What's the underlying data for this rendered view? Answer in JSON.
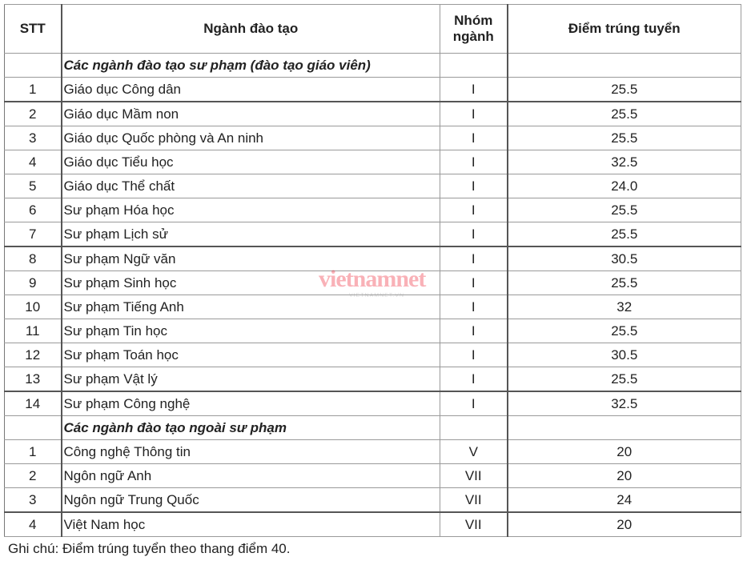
{
  "headers": {
    "stt": "STT",
    "nganh": "Ngành đào tạo",
    "nhom": "Nhóm ngành",
    "diem": "Điểm trúng tuyển"
  },
  "sections": [
    {
      "title": "Các ngành đào tạo sư phạm (đào tạo giáo viên)",
      "rows": [
        {
          "stt": "1",
          "nganh": "Giáo dục Công dân",
          "nhom": "I",
          "diem": "25.5"
        },
        {
          "stt": "2",
          "nganh": "Giáo dục Mầm non",
          "nhom": "I",
          "diem": "25.5"
        },
        {
          "stt": "3",
          "nganh": "Giáo dục Quốc phòng và An ninh",
          "nhom": "I",
          "diem": "25.5"
        },
        {
          "stt": "4",
          "nganh": "Giáo dục Tiểu học",
          "nhom": "I",
          "diem": "32.5"
        },
        {
          "stt": "5",
          "nganh": "Giáo dục Thể chất",
          "nhom": "I",
          "diem": "24.0"
        },
        {
          "stt": "6",
          "nganh": "Sư phạm Hóa học",
          "nhom": "I",
          "diem": "25.5"
        },
        {
          "stt": "7",
          "nganh": "Sư phạm Lịch sử",
          "nhom": "I",
          "diem": "25.5"
        },
        {
          "stt": "8",
          "nganh": "Sư phạm Ngữ văn",
          "nhom": "I",
          "diem": "30.5"
        },
        {
          "stt": "9",
          "nganh": "Sư phạm Sinh học",
          "nhom": "I",
          "diem": "25.5"
        },
        {
          "stt": "10",
          "nganh": "Sư phạm Tiếng Anh",
          "nhom": "I",
          "diem": "32"
        },
        {
          "stt": "11",
          "nganh": "Sư phạm Tin học",
          "nhom": "I",
          "diem": "25.5"
        },
        {
          "stt": "12",
          "nganh": "Sư phạm Toán học",
          "nhom": "I",
          "diem": "30.5"
        },
        {
          "stt": "13",
          "nganh": "Sư phạm Vật lý",
          "nhom": "I",
          "diem": "25.5"
        },
        {
          "stt": "14",
          "nganh": "Sư phạm Công nghệ",
          "nhom": "I",
          "diem": "32.5"
        }
      ]
    },
    {
      "title": "Các ngành đào tạo ngoài sư phạm",
      "rows": [
        {
          "stt": "1",
          "nganh": "Công nghệ Thông tin",
          "nhom": "V",
          "diem": "20"
        },
        {
          "stt": "2",
          "nganh": "Ngôn ngữ Anh",
          "nhom": "VII",
          "diem": "20"
        },
        {
          "stt": "3",
          "nganh": "Ngôn ngữ Trung Quốc",
          "nhom": "VII",
          "diem": "24"
        },
        {
          "stt": "4",
          "nganh": "Việt Nam học",
          "nhom": "VII",
          "diem": "20"
        }
      ]
    }
  ],
  "note": "Ghi chú: Điểm trúng tuyển theo thang điểm 40.",
  "watermark": {
    "logo": "vietnamnet",
    "url": "VIETNAMNET.VN"
  }
}
